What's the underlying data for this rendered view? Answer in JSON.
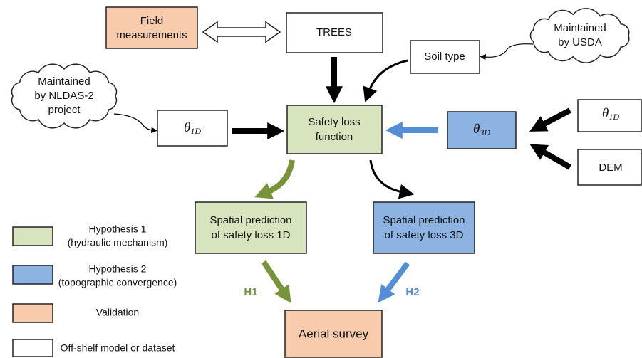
{
  "nodes": {
    "field_measurements": {
      "lines": [
        "Field",
        "measurements"
      ]
    },
    "trees": {
      "lines": [
        "TREES"
      ]
    },
    "soil_type": {
      "lines": [
        "Soil type"
      ]
    },
    "usda_cloud": {
      "lines": [
        "Maintained",
        "by USDA"
      ]
    },
    "nldas_cloud": {
      "lines": [
        "Maintained",
        "by NLDAS-2",
        "project"
      ]
    },
    "theta_1d_left": {
      "symbol": "θ",
      "subscript": "1D"
    },
    "safety_loss_function": {
      "lines": [
        "Safety loss",
        "function"
      ]
    },
    "theta_3d": {
      "symbol": "θ",
      "subscript": "3D"
    },
    "theta_1d_right": {
      "symbol": "θ",
      "subscript": "1D"
    },
    "dem": {
      "lines": [
        "DEM"
      ]
    },
    "spatial_1d": {
      "lines": [
        "Spatial prediction",
        "of safety loss 1D"
      ]
    },
    "spatial_3d": {
      "lines": [
        "Spatial prediction",
        "of safety loss 3D"
      ]
    },
    "aerial_survey": {
      "lines": [
        "Aerial survey"
      ]
    }
  },
  "edge_labels": {
    "h1": "H1",
    "h2": "H2"
  },
  "legend": [
    {
      "lines": [
        "Hypothesis 1",
        "(hydraulic mechanism)"
      ]
    },
    {
      "lines": [
        "Hypothesis 2",
        "(topographic convergence)"
      ]
    },
    {
      "lines": [
        "Validation"
      ]
    },
    {
      "lines": [
        "Off-shelf model or dataset"
      ]
    }
  ]
}
